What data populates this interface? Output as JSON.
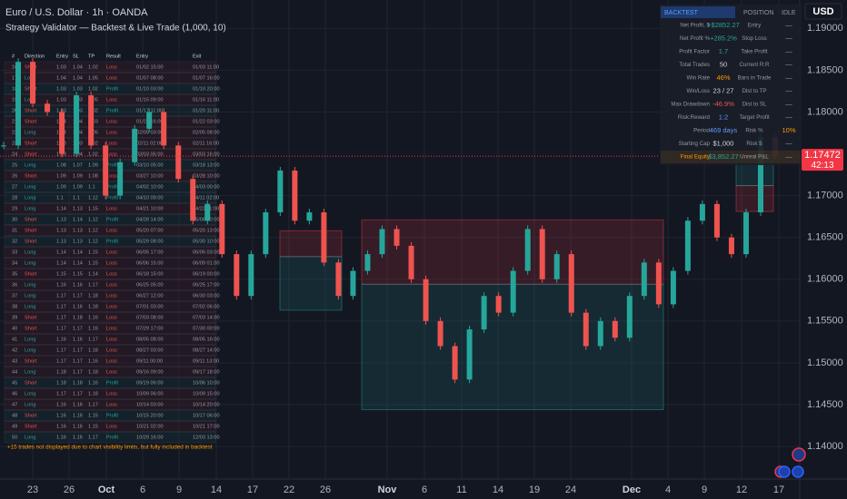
{
  "header": {
    "symbol": "Euro / U.S. Dollar · 1h · OANDA",
    "strategy": "Strategy Validator — Backtest & Live Trade (1,000, 10)"
  },
  "chart_data": {
    "type": "candlestick",
    "closes": [
      1.176,
      1.186,
      1.181,
      1.18,
      1.175,
      1.182,
      1.176,
      1.17,
      1.174,
      1.178,
      1.18,
      1.176,
      1.172,
      1.167,
      1.169,
      1.163,
      1.158,
      1.163,
      1.168,
      1.173,
      1.167,
      1.168,
      1.162,
      1.158,
      1.161,
      1.163,
      1.166,
      1.164,
      1.16,
      1.155,
      1.152,
      1.148,
      1.154,
      1.158,
      1.156,
      1.161,
      1.166,
      1.16,
      1.163,
      1.156,
      1.152,
      1.155,
      1.153,
      1.158,
      1.162,
      1.157,
      1.161,
      1.167,
      1.169,
      1.165,
      1.163,
      1.168,
      1.177,
      1.1747
    ],
    "up_color": "#26a69a",
    "down_color": "#ef5350",
    "ylim": [
      1.1361,
      1.1934
    ],
    "yticks": [
      {
        "value": 1.19,
        "label": "1.19000"
      },
      {
        "value": 1.185,
        "label": "1.18500"
      },
      {
        "value": 1.18,
        "label": "1.18000"
      },
      {
        "value": 1.17,
        "label": "1.17000"
      },
      {
        "value": 1.165,
        "label": "1.16500"
      },
      {
        "value": 1.16,
        "label": "1.16000"
      },
      {
        "value": 1.155,
        "label": "1.15500"
      },
      {
        "value": 1.15,
        "label": "1.15000"
      },
      {
        "value": 1.145,
        "label": "1.14500"
      },
      {
        "value": 1.14,
        "label": "1.14000"
      }
    ],
    "x_labels": [
      "23",
      "26",
      "Oct",
      "6",
      "9",
      "14",
      "17",
      "22",
      "26",
      "Nov",
      "6",
      "11",
      "14",
      "19",
      "24",
      "Dec",
      "4",
      "9",
      "12",
      "17"
    ],
    "currency": "USD",
    "last_price": {
      "value": 1.17472,
      "label": "1.17472"
    },
    "countdown": "42:13",
    "zones": [
      {
        "entry": 1.1627,
        "sl": 1.1658,
        "tp": 1.1563
      },
      {
        "entry": 1.1594,
        "sl": 1.1671,
        "tp": 1.1444
      },
      {
        "entry": 1.1712,
        "sl": 1.1681,
        "tp": 1.1748
      }
    ]
  },
  "trade_table": {
    "headers": [
      "#",
      "Direction",
      "Entry",
      "SL",
      "TP",
      "Result",
      "Entry",
      "Exit"
    ],
    "rows": [
      [
        "16",
        "Short",
        "1.03",
        "1.04",
        "1.02",
        "Loss",
        "01/02 15:00",
        "01/03 11:00"
      ],
      [
        "17",
        "Long",
        "1.04",
        "1.04",
        "1.05",
        "Loss",
        "01/07 08:00",
        "01/07 16:00"
      ],
      [
        "18",
        "Short",
        "1.03",
        "1.03",
        "1.02",
        "Profit",
        "01/10 03:00",
        "01/10 20:00"
      ],
      [
        "19",
        "Long",
        "1.03",
        "1.03",
        "1.05",
        "Loss",
        "01/15 09:00",
        "01/16 11:00"
      ],
      [
        "20",
        "Short",
        "1.03",
        "1.03",
        "1.02",
        "Profit",
        "01/17 11:00",
        "01/20 11:00"
      ],
      [
        "21",
        "Short",
        "1.04",
        "1.04",
        "1.03",
        "Loss",
        "01/21 16:00",
        "01/22 03:00"
      ],
      [
        "22",
        "Long",
        "1.04",
        "1.04",
        "1.05",
        "Loss",
        "02/05 03:00",
        "02/05 08:00"
      ],
      [
        "23",
        "Short",
        "1.03",
        "1.03",
        "1.02",
        "Loss",
        "02/11 02:00",
        "02/11 16:00"
      ],
      [
        "24",
        "Short",
        "1.03",
        "1.04",
        "1.02",
        "Loss",
        "03/03 06:00",
        "03/03 16:00"
      ],
      [
        "25",
        "Long",
        "1.08",
        "1.07",
        "1.09",
        "Profit",
        "03/10 05:00",
        "03/18 13:00"
      ],
      [
        "26",
        "Short",
        "1.09",
        "1.09",
        "1.08",
        "Loss",
        "03/27 10:00",
        "03/28 10:00"
      ],
      [
        "27",
        "Long",
        "1.09",
        "1.09",
        "1.1",
        "Profit",
        "04/02 10:00",
        "04/03 00:00"
      ],
      [
        "28",
        "Long",
        "1.1",
        "1.1",
        "1.12",
        "Profit",
        "04/10 09:00",
        "04/11 02:00"
      ],
      [
        "29",
        "Long",
        "1.14",
        "1.13",
        "1.15",
        "Loss",
        "04/21 10:00",
        "04/22 11:00"
      ],
      [
        "30",
        "Short",
        "1.13",
        "1.14",
        "1.12",
        "Profit",
        "04/28 14:00",
        "05/06 00:00"
      ],
      [
        "31",
        "Short",
        "1.13",
        "1.13",
        "1.12",
        "Loss",
        "05/20 07:00",
        "05/20 13:00"
      ],
      [
        "32",
        "Short",
        "1.13",
        "1.13",
        "1.12",
        "Profit",
        "05/29 08:00",
        "05/30 10:00"
      ],
      [
        "33",
        "Long",
        "1.14",
        "1.14",
        "1.15",
        "Loss",
        "06/05 17:00",
        "06/06 03:00"
      ],
      [
        "34",
        "Long",
        "1.14",
        "1.14",
        "1.15",
        "Loss",
        "06/06 15:00",
        "06/09 01:00"
      ],
      [
        "35",
        "Short",
        "1.15",
        "1.15",
        "1.14",
        "Loss",
        "06/18 15:00",
        "06/19 00:00"
      ],
      [
        "36",
        "Long",
        "1.16",
        "1.16",
        "1.17",
        "Loss",
        "06/25 05:00",
        "06/25 17:00"
      ],
      [
        "37",
        "Long",
        "1.17",
        "1.17",
        "1.18",
        "Loss",
        "06/27 12:00",
        "06/30 03:00"
      ],
      [
        "38",
        "Long",
        "1.17",
        "1.16",
        "1.18",
        "Loss",
        "07/01 03:00",
        "07/02 06:00"
      ],
      [
        "39",
        "Short",
        "1.17",
        "1.18",
        "1.16",
        "Loss",
        "07/03 08:00",
        "07/03 14:00"
      ],
      [
        "40",
        "Short",
        "1.17",
        "1.17",
        "1.16",
        "Loss",
        "07/29 17:00",
        "07/30 00:00"
      ],
      [
        "41",
        "Long",
        "1.16",
        "1.16",
        "1.17",
        "Loss",
        "08/05 08:00",
        "08/05 16:00"
      ],
      [
        "42",
        "Long",
        "1.17",
        "1.17",
        "1.18",
        "Loss",
        "08/27 03:00",
        "08/27 14:00"
      ],
      [
        "43",
        "Short",
        "1.17",
        "1.17",
        "1.16",
        "Loss",
        "09/11 00:00",
        "09/11 13:00"
      ],
      [
        "44",
        "Long",
        "1.18",
        "1.17",
        "1.18",
        "Loss",
        "09/16 09:00",
        "09/17 18:00"
      ],
      [
        "45",
        "Short",
        "1.18",
        "1.18",
        "1.16",
        "Profit",
        "09/19 06:00",
        "10/06 10:00"
      ],
      [
        "46",
        "Long",
        "1.17",
        "1.17",
        "1.18",
        "Loss",
        "10/09 06:00",
        "10/09 15:00"
      ],
      [
        "47",
        "Long",
        "1.16",
        "1.16",
        "1.17",
        "Loss",
        "10/14 03:00",
        "10/14 20:00"
      ],
      [
        "48",
        "Short",
        "1.16",
        "1.16",
        "1.15",
        "Profit",
        "10/15 20:00",
        "10/17 06:00"
      ],
      [
        "49",
        "Short",
        "1.16",
        "1.16",
        "1.15",
        "Loss",
        "10/21 02:00",
        "10/21 17:00"
      ],
      [
        "50",
        "Long",
        "1.16",
        "1.16",
        "1.17",
        "Profit",
        "10/29 16:00",
        "12/03 13:00"
      ]
    ],
    "footnote": "+15 trades not displayed due to chart visibility limits, but fully included in backtest"
  },
  "stats_panel": {
    "tabs": [
      "BACKTEST",
      "POSITION",
      "IDLE"
    ],
    "rows": [
      [
        "Net Profit, $",
        "+$2852.27",
        "Entry",
        "—"
      ],
      [
        "Net Profit %",
        "+285.2%",
        "Stop Loss",
        "—"
      ],
      [
        "Profit Factor",
        "1.7",
        "Take Profit",
        "—"
      ],
      [
        "Total Trades",
        "50",
        "Current R:R",
        "—"
      ],
      [
        "Win Rate",
        "46%",
        "Bars in Trade",
        "—"
      ],
      [
        "Win/Loss",
        "23 / 27",
        "Dist to TP",
        "—"
      ],
      [
        "Max Drawdown",
        "-46.9%",
        "Dist to SL",
        "—"
      ],
      [
        "Risk:Reward",
        "1:2",
        "Target Profit",
        "—"
      ],
      [
        "Period",
        "469 days",
        "Risk %",
        "10%"
      ],
      [
        "Starting Cap",
        "$1,000",
        "Risk $",
        "—"
      ],
      [
        "Final Equity",
        "$3,852.27",
        "Unreal P&L",
        "—"
      ]
    ]
  }
}
